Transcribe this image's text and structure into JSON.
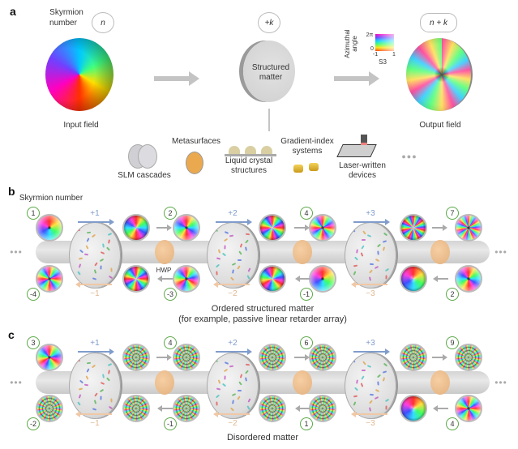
{
  "panel_a": {
    "label": "a",
    "skyrmion_label_1": "Skyrmion",
    "skyrmion_label_2": "number",
    "input_charge": "n",
    "matter_charge": "+k",
    "output_charge": "n + k",
    "matter_label_1": "Structured",
    "matter_label_2": "matter",
    "input_label": "Input field",
    "output_label": "Output field",
    "colormap": {
      "ylabel_1": "Azimuthal",
      "ylabel_2": "angle",
      "ymax": "2π",
      "ymin": "0",
      "xmin": "-1",
      "xmax": "1",
      "xlabel": "S3"
    },
    "platforms": [
      {
        "label_1": "SLM cascades",
        "label_2": ""
      },
      {
        "label_1": "Metasurfaces",
        "label_2": ""
      },
      {
        "label_1": "Liquid crystal",
        "label_2": "structures"
      },
      {
        "label_1": "Gradient-index",
        "label_2": "systems"
      },
      {
        "label_1": "Laser-written",
        "label_2": "devices"
      }
    ],
    "more": "●●●"
  },
  "panel_b": {
    "label": "b",
    "title": "Skyrmion number",
    "top_numbers": [
      "1",
      "2",
      "4",
      "7"
    ],
    "bottom_numbers": [
      "-4",
      "-3",
      "-1",
      "2"
    ],
    "forward_steps": [
      "+1",
      "+2",
      "+3"
    ],
    "backward_steps": [
      "−1",
      "−2",
      "−3"
    ],
    "hwp_label": "HWP",
    "caption_1": "Ordered structured matter",
    "caption_2": "(for example, passive linear retarder array)",
    "ellipsis": "•••"
  },
  "panel_c": {
    "label": "c",
    "top_numbers": [
      "3",
      "4",
      "6",
      "9"
    ],
    "bottom_numbers": [
      "-2",
      "-1",
      "1",
      "4"
    ],
    "forward_steps": [
      "+1",
      "+2",
      "+3"
    ],
    "backward_steps": [
      "−1",
      "−2",
      "−3"
    ],
    "caption_1": "Disordered matter",
    "ellipsis": "•••"
  },
  "colors": {
    "forward": "#7f9ccc",
    "backward": "#f0c8a6",
    "badge": "#5aa845",
    "hwp": "#eebf90"
  }
}
